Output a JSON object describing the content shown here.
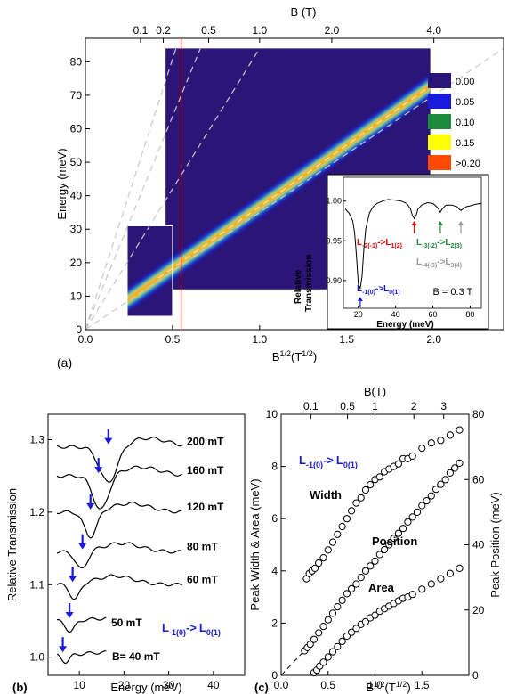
{
  "chart_data": [
    {
      "panel": "(a)",
      "type": "heatmap",
      "xlabel": "B",
      "xlabel_sup": "1/2",
      "xlabel_unit_open": "(T",
      "xlabel_unit_sup": "1/2",
      "xlabel_unit_close": ")",
      "ylabel": "Energy (meV)",
      "top_axis_label": "B (T)",
      "xlim": [
        0.0,
        2.4
      ],
      "ylim": [
        0,
        87
      ],
      "x_ticks": [
        "0.0",
        "0.5",
        "1.0",
        "1.5",
        "2.0"
      ],
      "x_tick_values": [
        0.0,
        0.5,
        1.0,
        1.5,
        2.0
      ],
      "y_ticks": [
        "0",
        "10",
        "20",
        "30",
        "40",
        "50",
        "60",
        "70",
        "80"
      ],
      "y_tick_values": [
        0,
        10,
        20,
        30,
        40,
        50,
        60,
        70,
        80
      ],
      "top_ticks": [
        "0.1",
        "0.2",
        "0.5",
        "1.0",
        "2.0",
        "4.0"
      ],
      "top_tick_values": [
        0.1,
        0.2,
        0.5,
        1.0,
        2.0,
        4.0
      ],
      "colorscale": {
        "entries": [
          {
            "label": "0.00",
            "color": "#2b1677"
          },
          {
            "label": "0.05",
            "color": "#1a1adf"
          },
          {
            "label": "0.10",
            "color": "#1e8a3c"
          },
          {
            "label": "0.15",
            "color": "#ffff00"
          },
          {
            "label": ">0.20",
            "color": "#ff4a00"
          }
        ]
      },
      "maps": [
        {
          "xrange": [
            0.46,
            1.98
          ],
          "yrange": [
            12,
            84
          ]
        },
        {
          "xrange": [
            0.24,
            0.5
          ],
          "yrange": [
            4,
            31
          ]
        }
      ],
      "main_transition_line": {
        "x": [
          0.0,
          2.0
        ],
        "y": [
          0,
          73.5
        ]
      },
      "dashed_guides": [
        {
          "x0": 0.0,
          "y0": 0,
          "x1": 1.0,
          "y1": 84
        },
        {
          "x0": 0.0,
          "y0": 0,
          "x1": 0.66,
          "y1": 84
        },
        {
          "x0": 0.0,
          "y0": 0,
          "x1": 0.52,
          "y1": 84
        },
        {
          "x0": 0.0,
          "y0": 0,
          "x1": 2.4,
          "y1": 84
        }
      ],
      "vertical_marker": {
        "x": 0.55,
        "color": "#e60000"
      },
      "inset": {
        "ylabel_line1": "Relative",
        "ylabel_line2": "Transmission",
        "xlabel": "Energy (meV)",
        "xlim": [
          12,
          86
        ],
        "ylim": [
          0.865,
          1.03
        ],
        "x_ticks": [
          "20",
          "40",
          "60",
          "80"
        ],
        "x_tick_values": [
          20,
          40,
          60,
          80
        ],
        "y_ticks": [
          "0.90",
          "0.95",
          "1.00"
        ],
        "y_tick_values": [
          0.9,
          0.95,
          1.0
        ],
        "field_label": "B = 0.3 T",
        "spectrum": {
          "x": [
            13,
            15,
            17,
            18,
            19,
            20,
            21,
            22,
            23,
            24,
            26,
            28,
            30,
            33,
            36,
            40,
            43,
            46,
            48,
            49,
            50,
            51,
            52,
            54,
            57,
            60,
            62,
            63,
            64,
            65,
            67,
            70,
            73,
            74,
            75,
            76,
            78,
            80,
            83,
            86
          ],
          "y": [
            0.99,
            0.985,
            0.975,
            0.96,
            0.93,
            0.895,
            0.89,
            0.905,
            0.94,
            0.965,
            0.985,
            0.993,
            0.997,
            1.0,
            1.002,
            1.001,
            1.0,
            0.997,
            0.99,
            0.982,
            0.978,
            0.982,
            0.99,
            0.995,
            0.998,
            0.997,
            0.993,
            0.99,
            0.986,
            0.99,
            0.995,
            0.995,
            0.993,
            0.99,
            0.988,
            0.99,
            0.993,
            0.994,
            0.996,
            0.997
          ]
        },
        "transitions": [
          {
            "parts": [
              "L",
              "-1(0)",
              "->L",
              "0(1)"
            ],
            "color": "#1a1adf",
            "x": 21
          },
          {
            "parts": [
              "L",
              "-2(-1)",
              "->L",
              "1(2)"
            ],
            "color": "#e60000",
            "x": 50
          },
          {
            "parts": [
              "L",
              "-3(-2)",
              "->L",
              "2(3)"
            ],
            "color": "#1e8a3c",
            "x": 64
          },
          {
            "parts": [
              "L",
              "-4(-3)",
              "->L",
              "3(4)"
            ],
            "color": "#999999",
            "x": 75
          }
        ]
      }
    },
    {
      "panel": "(b)",
      "type": "line",
      "xlabel": "Energy (meV)",
      "ylabel": "Relative Transmission",
      "xlim": [
        3,
        47
      ],
      "ylim": [
        0.975,
        1.335
      ],
      "x_ticks": [
        "10",
        "20",
        "30",
        "40"
      ],
      "x_tick_values": [
        10,
        20,
        30,
        40
      ],
      "y_ticks": [
        "1.0",
        "1.1",
        "1.2",
        "1.3"
      ],
      "y_tick_values": [
        1.0,
        1.1,
        1.2,
        1.3
      ],
      "transition_parts": [
        "L",
        "-1(0)",
        "->",
        "L",
        "0(1)"
      ],
      "series": [
        {
          "name": "200 mT",
          "offset": 1.29,
          "end": 33,
          "dip_x": 16.5,
          "dip_depth": 0.05,
          "dip_width": 2.8,
          "arrow_x": 16.5
        },
        {
          "name": "160 mT",
          "offset": 1.25,
          "end": 33,
          "dip_x": 14.8,
          "dip_depth": 0.048,
          "dip_width": 2.4,
          "arrow_x": 14.3
        },
        {
          "name": "120 mT",
          "offset": 1.2,
          "end": 33,
          "dip_x": 12.5,
          "dip_depth": 0.035,
          "dip_width": 2.0,
          "arrow_x": 12.5
        },
        {
          "name": "80 mT",
          "offset": 1.145,
          "end": 33,
          "dip_x": 10.5,
          "dip_depth": 0.025,
          "dip_width": 1.8,
          "arrow_x": 10.7
        },
        {
          "name": "60 mT",
          "offset": 1.1,
          "end": 33,
          "dip_x": 9.0,
          "dip_depth": 0.022,
          "dip_width": 1.5,
          "arrow_x": 8.5
        },
        {
          "name": "50 mT",
          "offset": 1.05,
          "end": 16,
          "dip_x": 8.0,
          "dip_depth": 0.015,
          "dip_width": 1.4,
          "arrow_x": 7.8
        },
        {
          "name": "B= 40 mT",
          "offset": 1.003,
          "end": 16,
          "dip_x": 7.0,
          "dip_depth": 0.01,
          "dip_width": 1.2,
          "arrow_x": 6.3
        }
      ]
    },
    {
      "panel": "(c)",
      "type": "scatter",
      "xlabel": "B",
      "xlabel_sup": "1/2",
      "xlabel_unit_open": "(T",
      "xlabel_unit_sup": "1/2",
      "xlabel_unit_close": ")",
      "ylabel_left": "Peak Width & Area (meV)",
      "ylabel_right": "Peak Position (meV)",
      "top_axis_label": "B(T)",
      "xlim": [
        0.0,
        2.0
      ],
      "ylim_left": [
        0,
        10
      ],
      "ylim_right": [
        0,
        80
      ],
      "x_ticks": [
        "0.0",
        "0.5",
        "1.0",
        "1.5"
      ],
      "x_tick_values": [
        0.0,
        0.5,
        1.0,
        1.5
      ],
      "y_ticks_left": [
        "0",
        "2",
        "4",
        "6",
        "8",
        "10"
      ],
      "y_tick_values_left": [
        0,
        2,
        4,
        6,
        8,
        10
      ],
      "y_ticks_right": [
        "0",
        "20",
        "40",
        "60",
        "80"
      ],
      "y_tick_values_right": [
        0,
        20,
        40,
        60,
        80
      ],
      "top_ticks": [
        "0.1",
        "0.5",
        "1",
        "2",
        "3"
      ],
      "top_tick_values": [
        0.1,
        0.5,
        1,
        2,
        3
      ],
      "transition_parts": [
        "L",
        "-1(0)",
        "->",
        "L",
        "0(1)"
      ],
      "series": [
        {
          "name": "Width",
          "axis": "left",
          "x": [
            0.27,
            0.3,
            0.33,
            0.36,
            0.4,
            0.45,
            0.5,
            0.55,
            0.6,
            0.65,
            0.7,
            0.75,
            0.8,
            0.85,
            0.9,
            0.95,
            1.0,
            1.05,
            1.1,
            1.15,
            1.2,
            1.25,
            1.3,
            1.35,
            1.4,
            1.5,
            1.6,
            1.7,
            1.8,
            1.9
          ],
          "y": [
            3.7,
            3.9,
            4.0,
            4.1,
            4.3,
            4.5,
            4.8,
            5.1,
            5.4,
            5.7,
            6.0,
            6.3,
            6.6,
            6.8,
            7.1,
            7.3,
            7.5,
            7.6,
            7.8,
            7.9,
            8.0,
            8.1,
            8.3,
            8.3,
            8.4,
            8.7,
            8.9,
            9.0,
            9.2,
            9.4
          ]
        },
        {
          "name": "Position",
          "axis": "right",
          "x": [
            0.25,
            0.28,
            0.31,
            0.35,
            0.4,
            0.45,
            0.5,
            0.55,
            0.6,
            0.65,
            0.7,
            0.75,
            0.8,
            0.85,
            0.9,
            0.95,
            1.0,
            1.05,
            1.1,
            1.15,
            1.2,
            1.25,
            1.3,
            1.35,
            1.4,
            1.45,
            1.5,
            1.55,
            1.6,
            1.65,
            1.7,
            1.75,
            1.8,
            1.85,
            1.9
          ],
          "y": [
            7.5,
            8.5,
            9.5,
            11,
            13,
            15,
            17,
            19,
            21,
            23,
            25,
            26.5,
            28,
            30,
            32,
            33.5,
            35,
            37,
            38.5,
            40,
            42,
            43.5,
            45,
            47,
            48.5,
            50,
            52,
            53.5,
            55,
            57,
            58.5,
            60,
            62,
            63.5,
            65
          ]
        },
        {
          "name": "Area",
          "axis": "left",
          "x": [
            0.35,
            0.38,
            0.41,
            0.45,
            0.5,
            0.55,
            0.6,
            0.65,
            0.7,
            0.75,
            0.8,
            0.85,
            0.9,
            0.95,
            1.0,
            1.05,
            1.1,
            1.15,
            1.2,
            1.25,
            1.3,
            1.35,
            1.4,
            1.5,
            1.6,
            1.7,
            1.8,
            1.9
          ],
          "y": [
            0.1,
            0.2,
            0.35,
            0.5,
            0.7,
            0.9,
            1.1,
            1.3,
            1.5,
            1.65,
            1.8,
            1.95,
            2.05,
            2.2,
            2.3,
            2.45,
            2.55,
            2.65,
            2.75,
            2.85,
            2.95,
            3.0,
            3.1,
            3.3,
            3.5,
            3.7,
            3.9,
            4.1
          ]
        }
      ],
      "fit_line": {
        "x": [
          0.0,
          0.42
        ],
        "y": [
          0.0,
          1.6
        ]
      }
    }
  ]
}
